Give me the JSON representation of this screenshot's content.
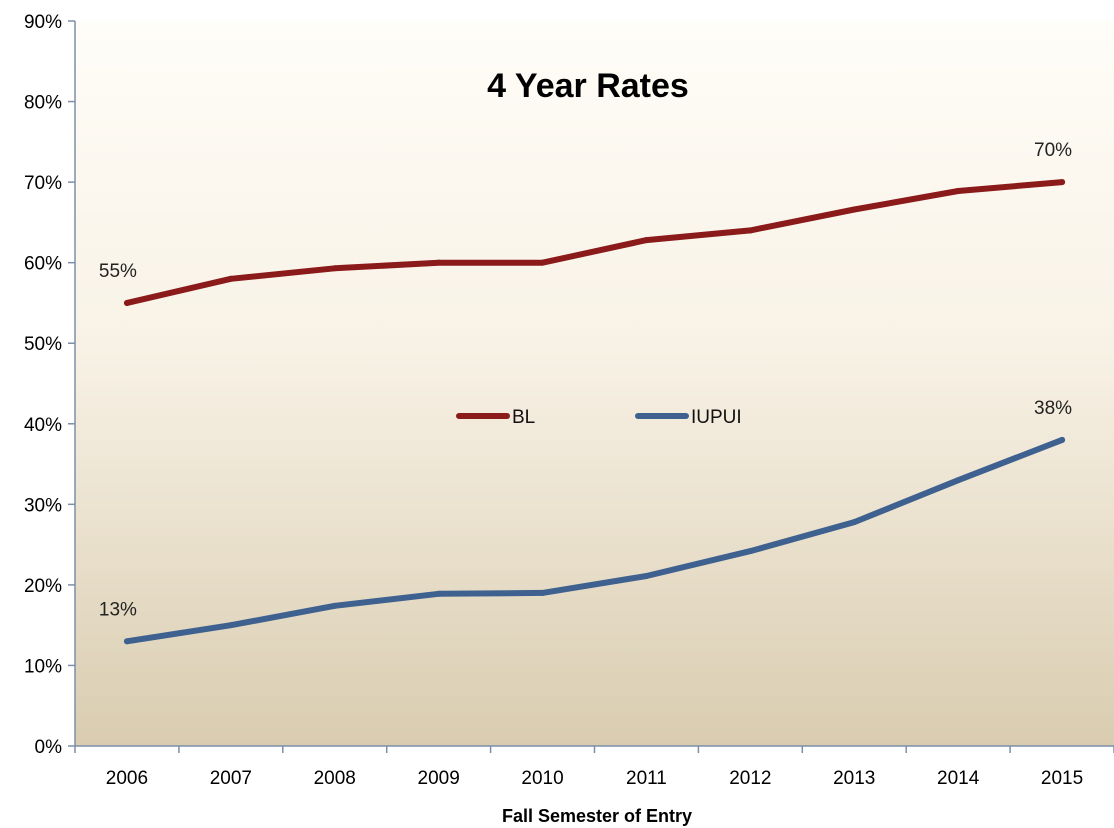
{
  "chart_data": {
    "type": "line",
    "title": "4 Year Rates",
    "xlabel": "Fall Semester of Entry",
    "ylabel": "",
    "categories": [
      "2006",
      "2007",
      "2008",
      "2009",
      "2010",
      "2011",
      "2012",
      "2013",
      "2014",
      "2015"
    ],
    "ylim": [
      0,
      90
    ],
    "yticks": [
      "0%",
      "10%",
      "20%",
      "30%",
      "40%",
      "50%",
      "60%",
      "70%",
      "80%",
      "90%"
    ],
    "series": [
      {
        "name": "BL",
        "color": "#8b1a1a",
        "values": [
          55,
          58,
          59.3,
          60,
          60,
          62.8,
          64,
          66.6,
          68.9,
          70
        ],
        "labels": [
          {
            "index": 0,
            "text": "55%"
          },
          {
            "index": 9,
            "text": "70%"
          }
        ]
      },
      {
        "name": "IUPUI",
        "color": "#3e6190",
        "values": [
          13,
          15,
          17.4,
          18.9,
          19,
          21.1,
          24.2,
          27.8,
          33,
          38
        ],
        "labels": [
          {
            "index": 0,
            "text": "13%"
          },
          {
            "index": 9,
            "text": "38%"
          }
        ]
      }
    ],
    "legend": "center",
    "grid": false
  }
}
